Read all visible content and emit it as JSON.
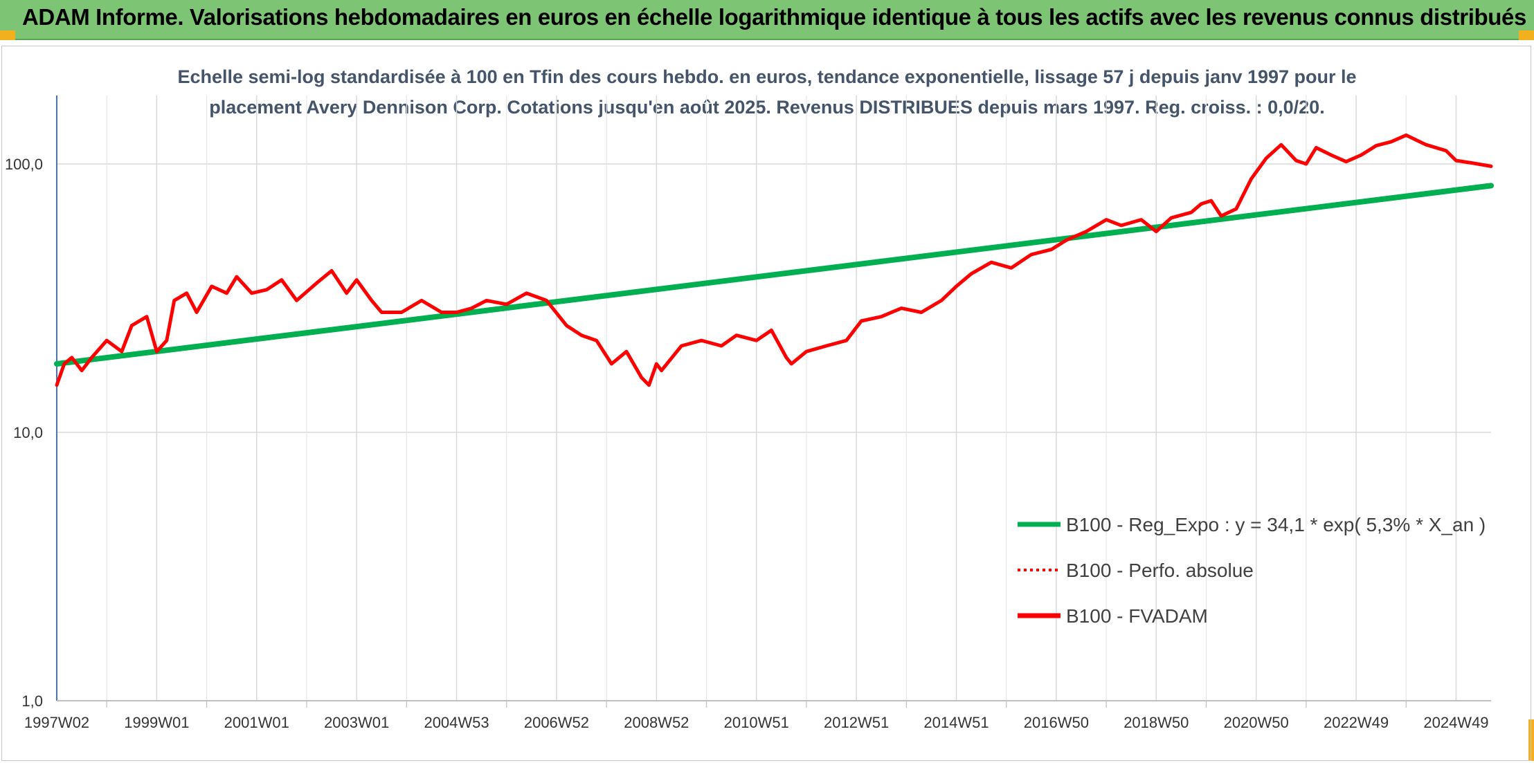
{
  "header": {
    "title": "ADAM Informe. Valorisations hebdomadaires en euros en échelle logarithmique identique à tous les actifs avec les revenus connus distribués"
  },
  "colors": {
    "header_bg": "#7dc574",
    "trend": "#00b050",
    "perf": "#ff0000",
    "fvadam": "#ff0000",
    "grid": "#d9d9d9",
    "accent": "#f2b01e"
  },
  "chart_data": {
    "type": "line",
    "title_line1": "Echelle semi-log standardisée à 100 en Tfin des cours hebdo. en euros, tendance exponentielle, lissage 57 j depuis janv 1997 pour le",
    "title_line2": "placement Avery Dennison Corp. Cotations jusqu'en août 2025. Revenus DISTRIBUES depuis mars 1997. Reg. croiss. : 0,0/20.",
    "y_scale": "log",
    "ylim": [
      1,
      180
    ],
    "y_ticks": [
      {
        "value": 1,
        "label": "1,0"
      },
      {
        "value": 10,
        "label": "10,0"
      },
      {
        "value": 100,
        "label": "100,0"
      }
    ],
    "xlim": [
      1997.0,
      2025.7
    ],
    "x_ticks": [
      {
        "x": 1997.0,
        "label": "1997W02"
      },
      {
        "x": 1999.0,
        "label": "1999W01"
      },
      {
        "x": 2001.0,
        "label": "2001W01"
      },
      {
        "x": 2003.0,
        "label": "2003W01"
      },
      {
        "x": 2005.0,
        "label": "2004W53"
      },
      {
        "x": 2007.0,
        "label": "2006W52"
      },
      {
        "x": 2009.0,
        "label": "2008W52"
      },
      {
        "x": 2011.0,
        "label": "2010W51"
      },
      {
        "x": 2013.0,
        "label": "2012W51"
      },
      {
        "x": 2015.0,
        "label": "2014W51"
      },
      {
        "x": 2017.0,
        "label": "2016W50"
      },
      {
        "x": 2019.0,
        "label": "2018W50"
      },
      {
        "x": 2021.0,
        "label": "2020W50"
      },
      {
        "x": 2023.0,
        "label": "2022W49"
      },
      {
        "x": 2025.0,
        "label": "2024W49"
      }
    ],
    "grid": true,
    "legend_position": "bottom-right",
    "series": [
      {
        "name": "B100 - Reg_Expo : y = 34,1 * exp( 5,3% *  X_an )",
        "style": "solid",
        "x": [
          1997.0,
          2025.7
        ],
        "y": [
          18.0,
          83.0
        ]
      },
      {
        "name": "B100 - Perfo. absolue",
        "style": "dotted",
        "x": [],
        "y": []
      },
      {
        "name": "B100 - FVADAM",
        "style": "solid",
        "x": [
          1997.0,
          1997.15,
          1997.3,
          1997.5,
          1997.7,
          1998.0,
          1998.3,
          1998.5,
          1998.8,
          1999.0,
          1999.2,
          1999.35,
          1999.6,
          1999.8,
          2000.1,
          2000.4,
          2000.6,
          2000.9,
          2001.2,
          2001.5,
          2001.8,
          2002.2,
          2002.5,
          2002.8,
          2003.0,
          2003.3,
          2003.5,
          2003.9,
          2004.3,
          2004.7,
          2005.0,
          2005.3,
          2005.6,
          2006.0,
          2006.4,
          2006.8,
          2007.2,
          2007.5,
          2007.8,
          2008.1,
          2008.4,
          2008.7,
          2008.85,
          2009.0,
          2009.1,
          2009.5,
          2009.9,
          2010.3,
          2010.6,
          2011.0,
          2011.3,
          2011.6,
          2011.7,
          2012.0,
          2012.4,
          2012.8,
          2013.1,
          2013.5,
          2013.9,
          2014.3,
          2014.7,
          2015.0,
          2015.3,
          2015.7,
          2016.1,
          2016.5,
          2016.9,
          2017.2,
          2017.6,
          2018.0,
          2018.3,
          2018.7,
          2019.0,
          2019.3,
          2019.7,
          2019.9,
          2020.1,
          2020.3,
          2020.6,
          2020.9,
          2021.2,
          2021.5,
          2021.8,
          2022.0,
          2022.2,
          2022.5,
          2022.8,
          2023.1,
          2023.4,
          2023.7,
          2024.0,
          2024.4,
          2024.8,
          2025.0,
          2025.3,
          2025.7
        ],
        "y": [
          15,
          18,
          19,
          17,
          19,
          22,
          20,
          25,
          27,
          20,
          22,
          31,
          33,
          28,
          35,
          33,
          38,
          33,
          34,
          37,
          31,
          36,
          40,
          33,
          37,
          31,
          28,
          28,
          31,
          28,
          28,
          29,
          31,
          30,
          33,
          31,
          25,
          23,
          22,
          18,
          20,
          16,
          15,
          18,
          17,
          21,
          22,
          21,
          23,
          22,
          24,
          19,
          18,
          20,
          21,
          22,
          26,
          27,
          29,
          28,
          31,
          35,
          39,
          43,
          41,
          46,
          48,
          52,
          56,
          62,
          59,
          62,
          56,
          63,
          66,
          71,
          73,
          64,
          68,
          88,
          105,
          118,
          103,
          100,
          115,
          108,
          102,
          108,
          117,
          121,
          128,
          118,
          112,
          103,
          101,
          98
        ]
      }
    ]
  }
}
